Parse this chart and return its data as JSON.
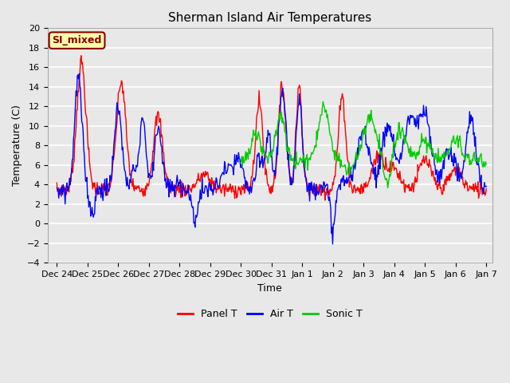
{
  "title": "Sherman Island Air Temperatures",
  "xlabel": "Time",
  "ylabel": "Temperature (C)",
  "ylim": [
    -4,
    20
  ],
  "fig_bg_color": "#e8e8e8",
  "plot_bg_color": "#e8e8e8",
  "grid_color": "#ffffff",
  "panel_t_color": "#ff0000",
  "air_t_color": "#0000ff",
  "sonic_t_color": "#00cc00",
  "line_width": 1.0,
  "annotation_text": "SI_mixed",
  "annotation_bg": "#ffffaa",
  "annotation_edge": "#880000",
  "annotation_text_color": "#880000",
  "xtick_labels": [
    "Dec 24",
    "Dec 25",
    "Dec 26",
    "Dec 27",
    "Dec 28",
    "Dec 29",
    "Dec 30",
    "Dec 31",
    "Jan 1",
    "Jan 2",
    "Jan 3",
    "Jan 4",
    "Jan 5",
    "Jan 6",
    "Jan 7"
  ],
  "legend_labels": [
    "Panel T",
    "Air T",
    "Sonic T"
  ]
}
